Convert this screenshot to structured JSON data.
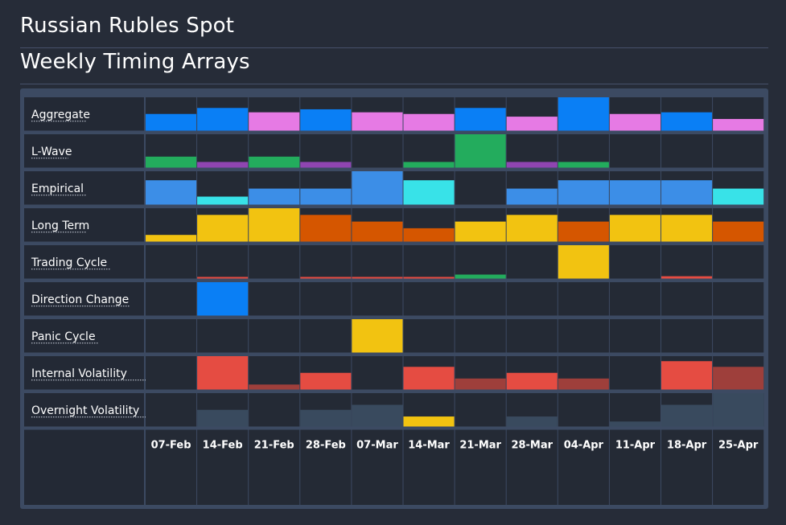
{
  "header": {
    "title": "Russian Rubles Spot",
    "subtitle": "Weekly Timing Arrays"
  },
  "colors": {
    "background": "#262c38",
    "panel": "#3c4a62",
    "cell": "#242a35",
    "label_cell": "#232935",
    "blue": "#0a7ff5",
    "pink": "#e67ae4",
    "green": "#23ac5d",
    "purple": "#8f45b1",
    "light_blue": "#3c8ee7",
    "cyan": "#38e2e8",
    "yellow": "#f2c311",
    "orange": "#d55600",
    "red": "#e54c42",
    "dark_red": "#9e3f3b",
    "slate": "#394a5e"
  },
  "chart_data": {
    "type": "heatmap",
    "title": "Weekly Timing Arrays",
    "x": [
      "07-Feb",
      "14-Feb",
      "21-Feb",
      "28-Feb",
      "07-Mar",
      "14-Mar",
      "21-Mar",
      "28-Mar",
      "04-Apr",
      "11-Apr",
      "18-Apr",
      "25-Apr"
    ],
    "value_scale": "fraction of cell height (0-1)",
    "series": [
      {
        "name": "Aggregate",
        "values": [
          0.5,
          0.68,
          0.55,
          0.64,
          0.55,
          0.5,
          0.68,
          0.42,
          1.0,
          0.5,
          0.55,
          0.35
        ],
        "colors": [
          "blue",
          "blue",
          "pink",
          "blue",
          "pink",
          "pink",
          "blue",
          "pink",
          "blue",
          "pink",
          "blue",
          "pink"
        ]
      },
      {
        "name": "L-Wave",
        "values": [
          0.33,
          0.17,
          0.33,
          0.17,
          0,
          0.17,
          1.0,
          0.17,
          0.17,
          0,
          0,
          0
        ],
        "colors": [
          "green",
          "purple",
          "green",
          "purple",
          "",
          "green",
          "green",
          "purple",
          "green",
          "",
          "",
          ""
        ]
      },
      {
        "name": "Empirical",
        "values": [
          0.73,
          0.24,
          0.48,
          0.48,
          1.0,
          0.73,
          0,
          0.48,
          0.73,
          0.73,
          0.73,
          0.48
        ],
        "colors": [
          "light_blue",
          "cyan",
          "light_blue",
          "light_blue",
          "light_blue",
          "cyan",
          "",
          "light_blue",
          "light_blue",
          "light_blue",
          "light_blue",
          "cyan"
        ]
      },
      {
        "name": "Long Term",
        "values": [
          0.2,
          0.8,
          1.0,
          0.8,
          0.6,
          0.4,
          0.6,
          0.8,
          0.6,
          0.8,
          0.8,
          0.6
        ],
        "colors": [
          "yellow",
          "yellow",
          "yellow",
          "orange",
          "orange",
          "orange",
          "yellow",
          "yellow",
          "orange",
          "yellow",
          "yellow",
          "orange"
        ]
      },
      {
        "name": "Trading Cycle",
        "values": [
          0,
          0.05,
          0,
          0.05,
          0.05,
          0.05,
          0.12,
          0,
          1.0,
          0,
          0.07,
          0
        ],
        "colors": [
          "",
          "red",
          "",
          "red",
          "red",
          "red",
          "green",
          "",
          "yellow",
          "",
          "red",
          ""
        ]
      },
      {
        "name": "Direction Change",
        "values": [
          0,
          1.0,
          0,
          0,
          0,
          0,
          0,
          0,
          0,
          0,
          0,
          0
        ],
        "colors": [
          "",
          "blue",
          "",
          "",
          "",
          "",
          "",
          "",
          "",
          "",
          "",
          ""
        ]
      },
      {
        "name": "Panic Cycle",
        "values": [
          0,
          0,
          0,
          0,
          1.0,
          0,
          0,
          0,
          0,
          0,
          0,
          0
        ],
        "colors": [
          "",
          "",
          "",
          "",
          "yellow",
          "",
          "",
          "",
          "",
          "",
          "",
          ""
        ]
      },
      {
        "name": "Internal Volatility",
        "values": [
          0,
          1.0,
          0.15,
          0.5,
          0,
          0.68,
          0.33,
          0.5,
          0.33,
          0,
          0.85,
          0.68
        ],
        "colors": [
          "",
          "red",
          "dark_red",
          "red",
          "",
          "red",
          "dark_red",
          "red",
          "dark_red",
          "",
          "red",
          "dark_red"
        ]
      },
      {
        "name": "Overnight Volatility",
        "values": [
          0,
          0.5,
          0,
          0.5,
          0.65,
          0.3,
          0,
          0.3,
          0,
          0.15,
          0.65,
          1.0
        ],
        "colors": [
          "",
          "slate",
          "",
          "slate",
          "slate",
          "yellow",
          "",
          "slate",
          "",
          "slate",
          "slate",
          "slate"
        ]
      }
    ],
    "grid": true,
    "legend": "none"
  }
}
